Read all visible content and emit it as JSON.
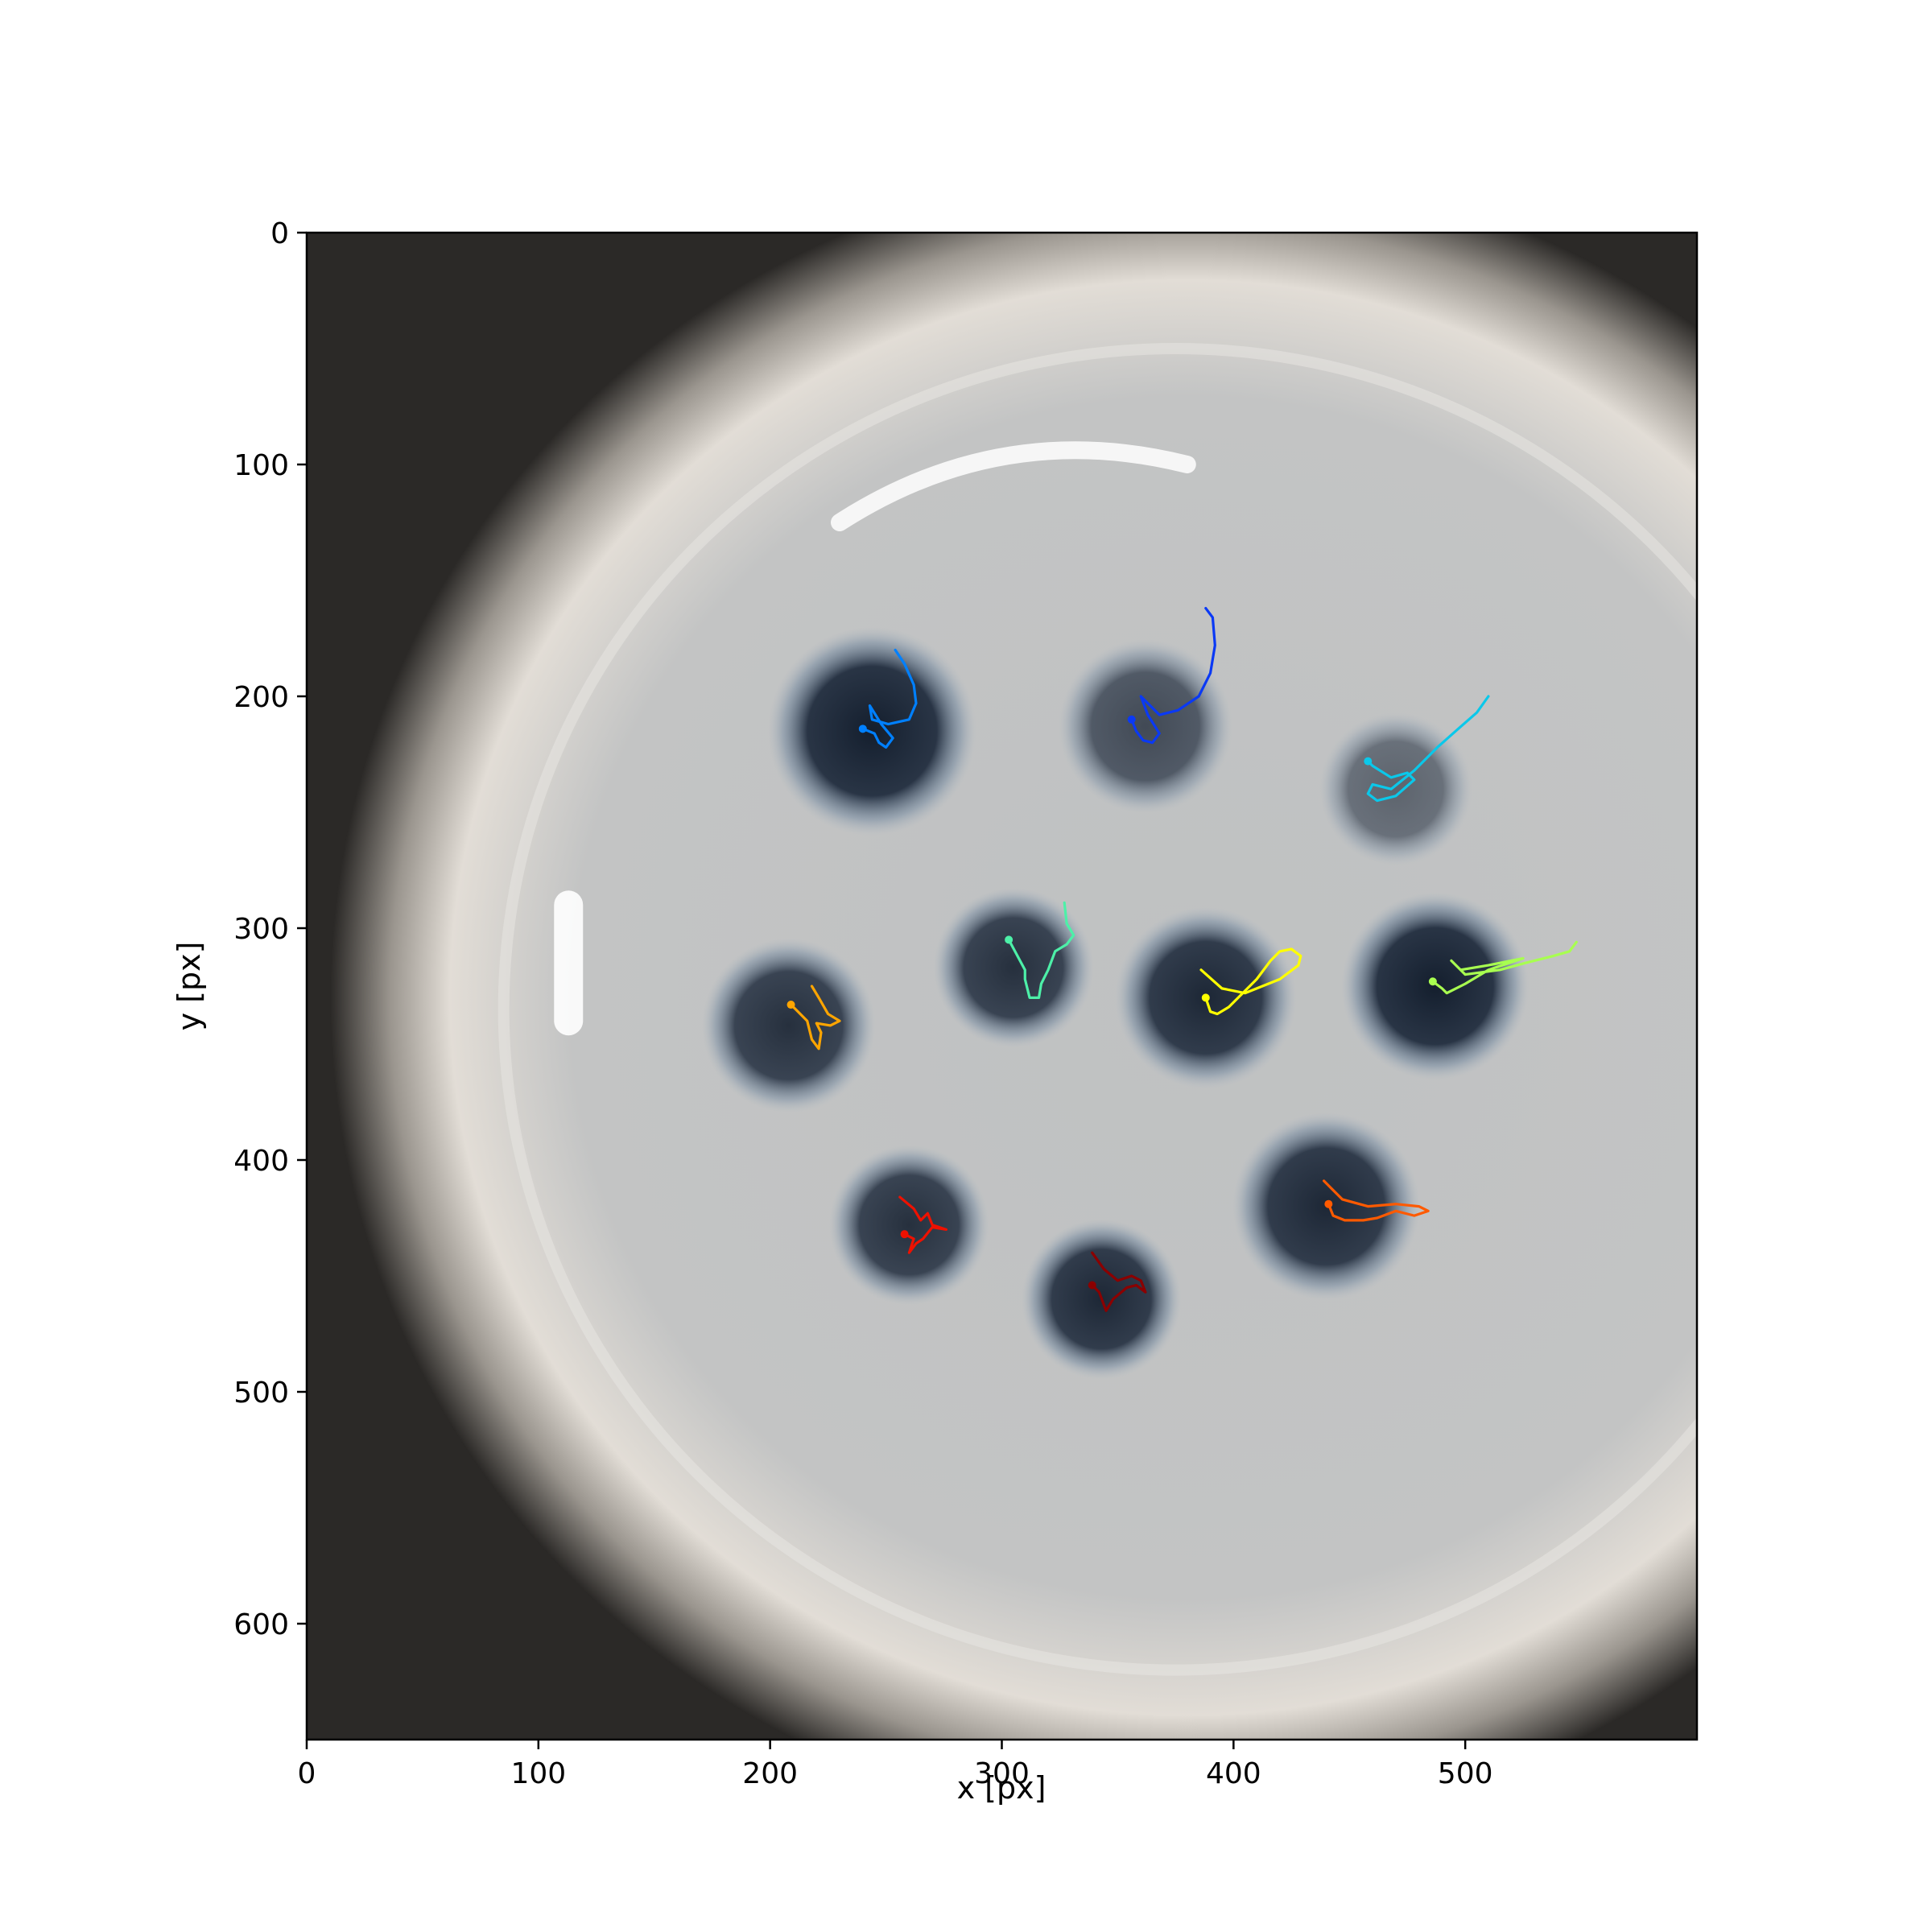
{
  "chart_data": {
    "type": "scatter",
    "subtype": "trajectory overlay on image",
    "title": "",
    "xlabel": "x [px]",
    "ylabel": "y [px]",
    "xlim": [
      0,
      600
    ],
    "ylim": [
      650,
      0
    ],
    "x_ticks": [
      0,
      100,
      200,
      300,
      400,
      500
    ],
    "y_ticks": [
      0,
      100,
      200,
      300,
      400,
      500,
      600
    ],
    "x_tick_labels": [
      "0",
      "100",
      "200",
      "300",
      "400",
      "500"
    ],
    "y_tick_labels": [
      "0",
      "100",
      "200",
      "300",
      "400",
      "500",
      "600"
    ],
    "grid": false,
    "legend": "none",
    "background": {
      "description_free": true,
      "dish_center": [
        380,
        330
      ],
      "wells": [
        {
          "x": 244,
          "y": 215,
          "r": 30,
          "darkness": 0.95
        },
        {
          "x": 362,
          "y": 213,
          "r": 25,
          "darkness": 0.7
        },
        {
          "x": 470,
          "y": 240,
          "r": 22,
          "darkness": 0.55
        },
        {
          "x": 208,
          "y": 342,
          "r": 25,
          "darkness": 0.85
        },
        {
          "x": 305,
          "y": 317,
          "r": 23,
          "darkness": 0.85
        },
        {
          "x": 388,
          "y": 330,
          "r": 26,
          "darkness": 0.9
        },
        {
          "x": 487,
          "y": 325,
          "r": 27,
          "darkness": 0.95
        },
        {
          "x": 260,
          "y": 428,
          "r": 23,
          "darkness": 0.85
        },
        {
          "x": 343,
          "y": 460,
          "r": 23,
          "darkness": 0.9
        },
        {
          "x": 440,
          "y": 420,
          "r": 27,
          "darkness": 0.9
        }
      ]
    },
    "series": [
      {
        "color": "#0080ff",
        "points": [
          [
            254,
            180
          ],
          [
            258,
            186
          ],
          [
            262,
            195
          ],
          [
            263,
            203
          ],
          [
            260,
            210
          ],
          [
            251,
            212
          ],
          [
            244,
            210
          ],
          [
            243,
            204
          ],
          [
            248,
            212
          ],
          [
            253,
            218
          ],
          [
            250,
            222
          ],
          [
            247,
            220
          ],
          [
            245,
            216
          ],
          [
            240,
            214
          ]
        ]
      },
      {
        "color": "#0a39f5",
        "points": [
          [
            388,
            162
          ],
          [
            391,
            166
          ],
          [
            392,
            178
          ],
          [
            390,
            190
          ],
          [
            385,
            200
          ],
          [
            376,
            206
          ],
          [
            368,
            208
          ],
          [
            360,
            200
          ],
          [
            363,
            208
          ],
          [
            368,
            216
          ],
          [
            365,
            220
          ],
          [
            361,
            219
          ],
          [
            358,
            215
          ],
          [
            356,
            210
          ]
        ]
      },
      {
        "color": "#0ac8ea",
        "points": [
          [
            510,
            200
          ],
          [
            505,
            207
          ],
          [
            497,
            214
          ],
          [
            488,
            222
          ],
          [
            478,
            232
          ],
          [
            468,
            240
          ],
          [
            460,
            238
          ],
          [
            458,
            242
          ],
          [
            462,
            245
          ],
          [
            470,
            243
          ],
          [
            478,
            236
          ],
          [
            475,
            233
          ],
          [
            468,
            235
          ],
          [
            460,
            230
          ],
          [
            458,
            228
          ]
        ]
      },
      {
        "color": "#4df0a8",
        "points": [
          [
            327,
            289
          ],
          [
            328,
            298
          ],
          [
            331,
            303
          ],
          [
            328,
            307
          ],
          [
            323,
            310
          ],
          [
            320,
            318
          ],
          [
            317,
            324
          ],
          [
            316,
            330
          ],
          [
            312,
            330
          ],
          [
            310,
            322
          ],
          [
            310,
            318
          ],
          [
            303,
            305
          ]
        ]
      },
      {
        "color": "#ffff00",
        "points": [
          [
            386,
            318
          ],
          [
            395,
            326
          ],
          [
            405,
            328
          ],
          [
            420,
            322
          ],
          [
            428,
            316
          ],
          [
            429,
            312
          ],
          [
            425,
            309
          ],
          [
            420,
            310
          ],
          [
            416,
            314
          ],
          [
            410,
            322
          ],
          [
            402,
            330
          ],
          [
            398,
            334
          ],
          [
            393,
            337
          ],
          [
            390,
            336
          ],
          [
            388,
            330
          ]
        ]
      },
      {
        "color": "#a8ff50",
        "points": [
          [
            548,
            306
          ],
          [
            545,
            310
          ],
          [
            538,
            312
          ],
          [
            526,
            315
          ],
          [
            515,
            318
          ],
          [
            500,
            320
          ],
          [
            494,
            314
          ],
          [
            498,
            318
          ],
          [
            510,
            316
          ],
          [
            525,
            313
          ],
          [
            510,
            318
          ],
          [
            500,
            324
          ],
          [
            492,
            328
          ],
          [
            490,
            326
          ],
          [
            486,
            323
          ]
        ]
      },
      {
        "color": "#ffa500",
        "points": [
          [
            218,
            325
          ],
          [
            221,
            330
          ],
          [
            225,
            337
          ],
          [
            230,
            340
          ],
          [
            226,
            342
          ],
          [
            220,
            341
          ],
          [
            222,
            345
          ],
          [
            221,
            352
          ],
          [
            218,
            348
          ],
          [
            216,
            340
          ],
          [
            212,
            336
          ],
          [
            209,
            333
          ]
        ]
      },
      {
        "color": "#ff5a00",
        "points": [
          [
            439,
            409
          ],
          [
            447,
            417
          ],
          [
            458,
            420
          ],
          [
            470,
            419
          ],
          [
            480,
            420
          ],
          [
            484,
            422
          ],
          [
            478,
            424
          ],
          [
            470,
            422
          ],
          [
            462,
            425
          ],
          [
            456,
            426
          ],
          [
            448,
            426
          ],
          [
            443,
            424
          ],
          [
            441,
            419
          ]
        ]
      },
      {
        "color": "#ee1100",
        "points": [
          [
            256,
            416
          ],
          [
            262,
            421
          ],
          [
            265,
            426
          ],
          [
            268,
            423
          ],
          [
            270,
            428
          ],
          [
            276,
            430
          ],
          [
            270,
            429
          ],
          [
            266,
            434
          ],
          [
            263,
            436
          ],
          [
            260,
            440
          ],
          [
            262,
            434
          ],
          [
            258,
            432
          ]
        ]
      },
      {
        "color": "#8b0000",
        "points": [
          [
            339,
            440
          ],
          [
            344,
            447
          ],
          [
            350,
            452
          ],
          [
            356,
            450
          ],
          [
            360,
            452
          ],
          [
            362,
            457
          ],
          [
            358,
            454
          ],
          [
            354,
            455
          ],
          [
            348,
            460
          ],
          [
            345,
            465
          ],
          [
            342,
            457
          ],
          [
            339,
            454
          ]
        ]
      }
    ]
  }
}
